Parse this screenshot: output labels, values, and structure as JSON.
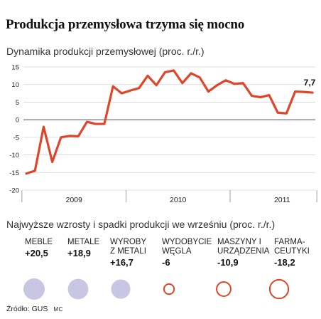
{
  "headline": "Produkcja przemysłowa trzyma się mocno",
  "chart_data": {
    "type": "line",
    "title": "Dynamika produkcji przemysłowej (proc. r./r.)",
    "ylim": [
      -20,
      15
    ],
    "yticks": [
      15,
      10,
      5,
      0,
      -5,
      -10,
      -15,
      -20
    ],
    "x_year_labels": [
      {
        "label": "2009",
        "center_index": 5.5
      },
      {
        "label": "2010",
        "center_index": 17.5
      },
      {
        "label": "2011",
        "center_index": 29.5
      }
    ],
    "year_boundaries": [
      0,
      12,
      24
    ],
    "series": [
      {
        "name": "",
        "color": "#e0452a",
        "x": [
          0,
          1,
          2,
          3,
          4,
          5,
          6,
          7,
          8,
          9,
          10,
          11,
          12,
          13,
          14,
          15,
          16,
          17,
          18,
          19,
          20,
          21,
          22,
          23,
          24,
          25,
          26,
          27,
          28,
          29,
          30,
          31,
          32,
          33
        ],
        "values": [
          -15.3,
          -14.5,
          -2,
          -12,
          -5,
          -4.6,
          -4.7,
          -0.6,
          -1.2,
          -1.2,
          9.5,
          7.5,
          8.3,
          9.0,
          12.5,
          9.8,
          13.5,
          14,
          10.4,
          13.2,
          12,
          8,
          9.8,
          11.2,
          10.2,
          10.4,
          6.8,
          6.4,
          7,
          2,
          1.8,
          8,
          7.9,
          7.7
        ]
      }
    ],
    "annotations": [
      {
        "text": "7,7",
        "x": 33,
        "y": 7.7
      }
    ],
    "grid": true
  },
  "bubbles": {
    "title": "Najwyższe wzrosty i spadki produkcji we wrześniu (proc. r./r.)",
    "fill_color": "#c9c6e3",
    "ring_color": "#e0452a",
    "items": [
      {
        "label": "MEBLE",
        "value": "+20,5",
        "magnitude": 20.5,
        "type": "filled"
      },
      {
        "label": "METALE",
        "value": "+18,9",
        "magnitude": 18.9,
        "type": "filled"
      },
      {
        "label": "WYROBY\nZ METALI",
        "value": "+16,7",
        "magnitude": 16.7,
        "type": "filled"
      },
      {
        "label": "WYDOBYCIE\nWĘGLA",
        "value": "-6",
        "magnitude": 6,
        "type": "ring"
      },
      {
        "label": "MASZYNY I\nURZĄDZENIA",
        "value": "-10,9",
        "magnitude": 10.9,
        "type": "ring"
      },
      {
        "label": "FARMA-\nCEUTYKI",
        "value": "-18,2",
        "magnitude": 18.2,
        "type": "ring"
      }
    ]
  },
  "source": {
    "text": "Źródło: GUS",
    "author": "MC"
  }
}
